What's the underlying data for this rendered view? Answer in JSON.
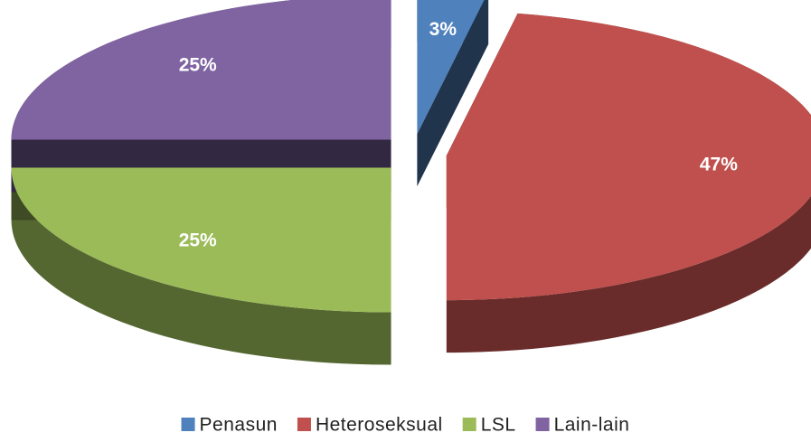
{
  "chart_data": {
    "type": "pie",
    "categories": [
      "Penasun",
      "Heteroseksual",
      "LSL",
      "Lain-lain"
    ],
    "values": [
      3,
      47,
      25,
      25
    ],
    "value_labels": [
      "3%",
      "47%",
      "25%",
      "25%"
    ],
    "colors": [
      "#4f81bd",
      "#c0504d",
      "#9bbb59",
      "#8064a2"
    ],
    "legend": "bottom"
  }
}
